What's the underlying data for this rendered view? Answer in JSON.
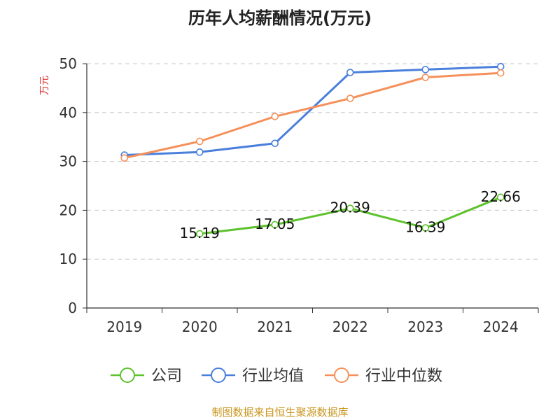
{
  "chart_data": {
    "type": "line",
    "title": "历年人均薪酬情况(万元)",
    "ylabel": "万元",
    "xlabel": "",
    "ylim": [
      0,
      50
    ],
    "yticks": [
      0,
      10,
      20,
      30,
      40,
      50
    ],
    "grid": "horizontal dashed",
    "legend_position": "bottom-center",
    "categories": [
      "2019",
      "2020",
      "2021",
      "2022",
      "2023",
      "2024"
    ],
    "series": [
      {
        "name": "公司",
        "color": "#5ec22e",
        "values": [
          null,
          15.19,
          17.05,
          20.39,
          16.39,
          22.66
        ],
        "labels": [
          "",
          "15.19",
          "17.05",
          "20.39",
          "16.39",
          "22.66"
        ]
      },
      {
        "name": "行业均值",
        "color": "#4a7fdc",
        "values": [
          31.3,
          31.9,
          33.7,
          48.2,
          48.8,
          49.4
        ]
      },
      {
        "name": "行业中位数",
        "color": "#f5905a",
        "values": [
          30.7,
          34.1,
          39.2,
          42.9,
          47.2,
          48.1
        ]
      }
    ],
    "source": "制图数据来自恒生聚源数据库"
  }
}
